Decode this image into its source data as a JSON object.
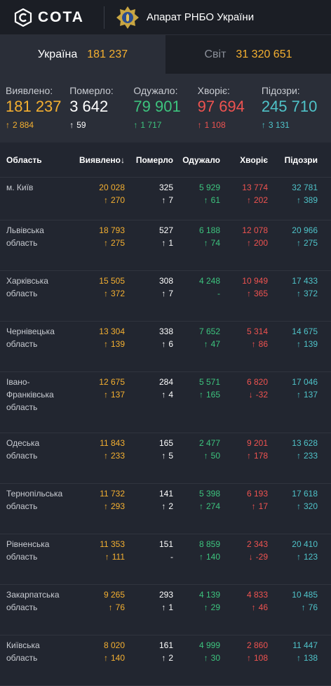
{
  "header": {
    "brand": "COTA",
    "org": "Апарат РНБО України",
    "icons": {
      "logo": "cota-logo-icon",
      "emblem": "rnbo-emblem-icon"
    }
  },
  "scope": {
    "ukraine": {
      "label": "Україна",
      "value": "181 237"
    },
    "world": {
      "label": "Світ",
      "value": "31 320 651"
    }
  },
  "summary": {
    "detected": {
      "label": "Виявлено:",
      "value": "181 237",
      "delta": "2 884"
    },
    "died": {
      "label": "Померло:",
      "value": "3 642",
      "delta": "59"
    },
    "recovered": {
      "label": "Одужало:",
      "value": "79 901",
      "delta": "1 717"
    },
    "sick": {
      "label": "Хворіє:",
      "value": "97 694",
      "delta": "1 108"
    },
    "suspected": {
      "label": "Підозри:",
      "value": "245 710",
      "delta": "3 131"
    }
  },
  "table": {
    "headers": {
      "region": "Область",
      "detected": "Виявлено",
      "sort_arrow": "↓",
      "died": "Померло",
      "recovered": "Одужало",
      "sick": "Хворіє",
      "suspected": "Підозри"
    },
    "rows": [
      {
        "region": [
          "м. Київ"
        ],
        "n": "20 028",
        "nd": "270",
        "p": "325",
        "pd": "7",
        "r": "5 929",
        "rd": "61",
        "h": "13 774",
        "hd": "202",
        "hdir": "up",
        "s": "32 781",
        "sd": "389"
      },
      {
        "region": [
          "Львівська",
          "область"
        ],
        "n": "18 793",
        "nd": "275",
        "p": "527",
        "pd": "1",
        "r": "6 188",
        "rd": "74",
        "h": "12 078",
        "hd": "200",
        "hdir": "up",
        "s": "20 966",
        "sd": "275"
      },
      {
        "region": [
          "Харківська",
          "область"
        ],
        "n": "15 505",
        "nd": "372",
        "p": "308",
        "pd": "7",
        "r": "4 248",
        "rd": "-",
        "h": "10 949",
        "hd": "365",
        "hdir": "up",
        "s": "17 433",
        "sd": "372"
      },
      {
        "region": [
          "Чернівецька",
          "область"
        ],
        "n": "13 304",
        "nd": "139",
        "p": "338",
        "pd": "6",
        "r": "7 652",
        "rd": "47",
        "h": "5 314",
        "hd": "86",
        "hdir": "up",
        "s": "14 675",
        "sd": "139"
      },
      {
        "region": [
          "Івано-",
          "Франківська",
          "область"
        ],
        "n": "12 675",
        "nd": "137",
        "p": "284",
        "pd": "4",
        "r": "5 571",
        "rd": "165",
        "h": "6 820",
        "hd": "-32",
        "hdir": "down",
        "s": "17 046",
        "sd": "137"
      },
      {
        "region": [
          "Одеська область"
        ],
        "n": "11 843",
        "nd": "233",
        "p": "165",
        "pd": "5",
        "r": "2 477",
        "rd": "50",
        "h": "9 201",
        "hd": "178",
        "hdir": "up",
        "s": "13 628",
        "sd": "233"
      },
      {
        "region": [
          "Тернопільська",
          "область"
        ],
        "n": "11 732",
        "nd": "293",
        "p": "141",
        "pd": "2",
        "r": "5 398",
        "rd": "274",
        "h": "6 193",
        "hd": "17",
        "hdir": "up",
        "s": "17 618",
        "sd": "320"
      },
      {
        "region": [
          "Рівненська",
          "область"
        ],
        "n": "11 353",
        "nd": "111",
        "p": "151",
        "pd": "-",
        "r": "8 859",
        "rd": "140",
        "h": "2 343",
        "hd": "-29",
        "hdir": "down",
        "s": "20 410",
        "sd": "123"
      },
      {
        "region": [
          "Закарпатська",
          "область"
        ],
        "n": "9 265",
        "nd": "76",
        "p": "293",
        "pd": "1",
        "r": "4 139",
        "rd": "29",
        "h": "4 833",
        "hd": "46",
        "hdir": "up",
        "s": "10 485",
        "sd": "76"
      },
      {
        "region": [
          "Київська",
          "область"
        ],
        "n": "8 020",
        "nd": "140",
        "p": "161",
        "pd": "2",
        "r": "4 999",
        "rd": "30",
        "h": "2 860",
        "hd": "108",
        "hdir": "up",
        "s": "11 447",
        "sd": "138"
      }
    ]
  },
  "colors": {
    "detected": "#f5b030",
    "died": "#ffffff",
    "recovered": "#3dc47e",
    "sick": "#ef5350",
    "suspected": "#4fc3c9",
    "background": "#222630"
  }
}
